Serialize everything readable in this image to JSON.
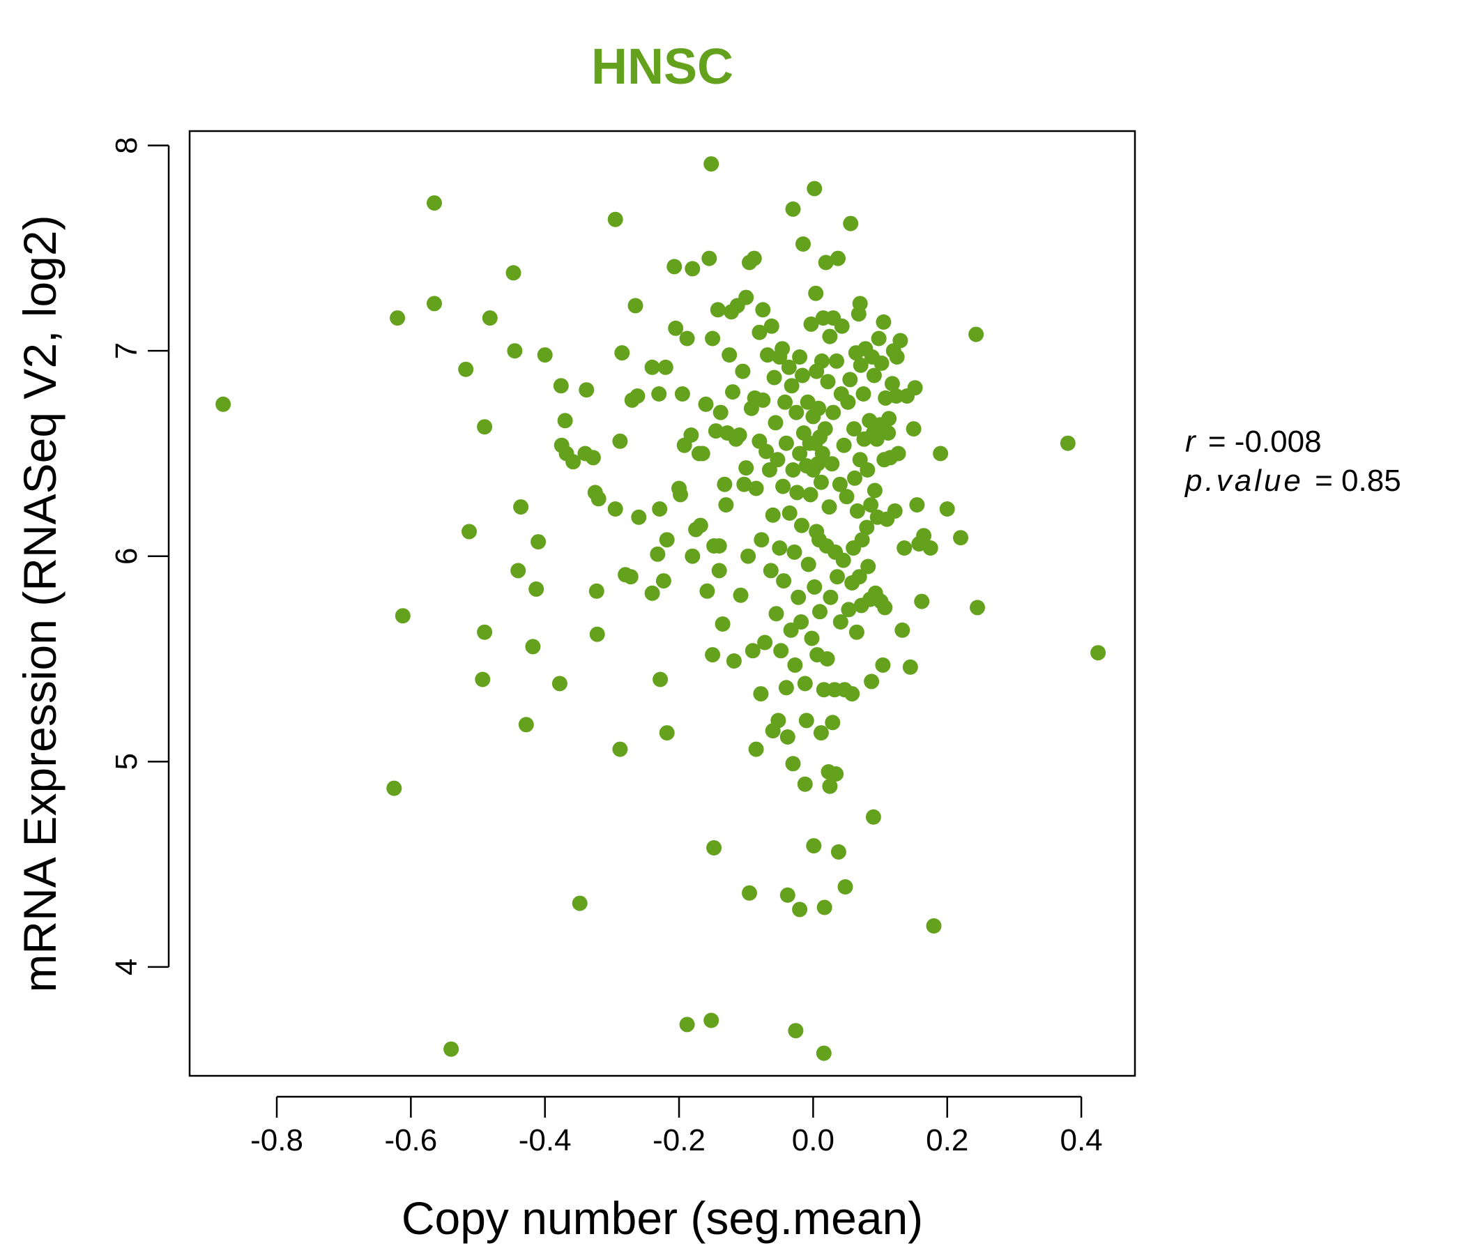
{
  "colors": {
    "accent": "#64A21E",
    "axis": "#000000",
    "background": "#ffffff"
  },
  "chart_data": {
    "type": "scatter",
    "title": "HNSC",
    "xlabel": "Copy number (seg.mean)",
    "ylabel": "mRNA Expression (RNASeq V2, log2)",
    "xlim": [
      -0.93,
      0.48
    ],
    "ylim": [
      3.47,
      8.07
    ],
    "xticks": [
      -0.8,
      -0.6,
      -0.4,
      -0.2,
      0.0,
      0.2,
      0.4
    ],
    "xtick_labels": [
      "-0.8",
      "-0.6",
      "-0.4",
      "-0.2",
      "0.0",
      "0.2",
      "0.4"
    ],
    "yticks": [
      4,
      5,
      6,
      7,
      8
    ],
    "ytick_labels": [
      "4",
      "5",
      "6",
      "7",
      "8"
    ],
    "grid": false,
    "legend": "none",
    "stats": {
      "r_label": "r",
      "r_value": "= -0.008",
      "p_label": "p.value",
      "p_value": "= 0.85"
    },
    "points": [
      [
        -0.88,
        6.74
      ],
      [
        -0.565,
        7.72
      ],
      [
        -0.565,
        7.23
      ],
      [
        -0.62,
        7.16
      ],
      [
        -0.612,
        5.71
      ],
      [
        -0.625,
        4.87
      ],
      [
        -0.54,
        3.6
      ],
      [
        -0.518,
        6.91
      ],
      [
        -0.513,
        6.12
      ],
      [
        -0.49,
        6.63
      ],
      [
        -0.49,
        5.63
      ],
      [
        -0.493,
        5.4
      ],
      [
        -0.482,
        7.16
      ],
      [
        -0.447,
        7.38
      ],
      [
        -0.445,
        7.0
      ],
      [
        -0.44,
        5.93
      ],
      [
        -0.436,
        6.24
      ],
      [
        -0.428,
        5.18
      ],
      [
        -0.418,
        5.56
      ],
      [
        -0.413,
        5.84
      ],
      [
        -0.41,
        6.07
      ],
      [
        -0.4,
        6.98
      ],
      [
        -0.376,
        6.83
      ],
      [
        -0.378,
        5.38
      ],
      [
        -0.37,
        6.66
      ],
      [
        -0.375,
        6.54
      ],
      [
        -0.368,
        6.5
      ],
      [
        -0.358,
        6.46
      ],
      [
        -0.348,
        4.31
      ],
      [
        -0.338,
        6.81
      ],
      [
        -0.34,
        6.5
      ],
      [
        -0.328,
        6.48
      ],
      [
        -0.325,
        6.31
      ],
      [
        -0.32,
        6.28
      ],
      [
        -0.323,
        5.83
      ],
      [
        -0.322,
        5.62
      ],
      [
        -0.295,
        7.64
      ],
      [
        -0.295,
        6.23
      ],
      [
        -0.288,
        6.56
      ],
      [
        -0.285,
        6.99
      ],
      [
        -0.288,
        5.06
      ],
      [
        -0.28,
        5.91
      ],
      [
        -0.272,
        5.9
      ],
      [
        -0.27,
        6.76
      ],
      [
        -0.265,
        7.22
      ],
      [
        -0.262,
        6.78
      ],
      [
        -0.26,
        6.19
      ],
      [
        -0.24,
        6.92
      ],
      [
        -0.24,
        5.82
      ],
      [
        -0.232,
        6.01
      ],
      [
        -0.23,
        6.79
      ],
      [
        -0.229,
        6.23
      ],
      [
        -0.228,
        5.4
      ],
      [
        -0.223,
        5.88
      ],
      [
        -0.22,
        6.92
      ],
      [
        -0.218,
        6.08
      ],
      [
        -0.218,
        5.14
      ],
      [
        -0.207,
        7.41
      ],
      [
        -0.205,
        7.11
      ],
      [
        -0.2,
        6.33
      ],
      [
        -0.198,
        6.3
      ],
      [
        -0.195,
        6.79
      ],
      [
        -0.192,
        6.54
      ],
      [
        -0.188,
        7.06
      ],
      [
        -0.188,
        3.72
      ],
      [
        -0.182,
        6.59
      ],
      [
        -0.18,
        6.0
      ],
      [
        -0.18,
        7.4
      ],
      [
        -0.175,
        6.13
      ],
      [
        -0.17,
        6.5
      ],
      [
        -0.168,
        6.15
      ],
      [
        -0.165,
        6.5
      ],
      [
        -0.16,
        6.74
      ],
      [
        -0.158,
        5.83
      ],
      [
        -0.155,
        7.45
      ],
      [
        -0.152,
        7.91
      ],
      [
        -0.152,
        3.74
      ],
      [
        -0.15,
        5.52
      ],
      [
        -0.15,
        7.06
      ],
      [
        -0.148,
        6.05
      ],
      [
        -0.148,
        4.58
      ],
      [
        -0.145,
        6.61
      ],
      [
        -0.142,
        7.2
      ],
      [
        -0.14,
        6.05
      ],
      [
        -0.14,
        5.93
      ],
      [
        -0.138,
        6.7
      ],
      [
        -0.135,
        5.67
      ],
      [
        -0.132,
        6.35
      ],
      [
        -0.13,
        6.25
      ],
      [
        -0.128,
        6.6
      ],
      [
        -0.125,
        6.98
      ],
      [
        -0.122,
        7.19
      ],
      [
        -0.12,
        6.8
      ],
      [
        -0.118,
        5.49
      ],
      [
        -0.115,
        6.57
      ],
      [
        -0.113,
        7.22
      ],
      [
        -0.11,
        6.59
      ],
      [
        -0.108,
        5.81
      ],
      [
        -0.105,
        6.9
      ],
      [
        -0.103,
        6.35
      ],
      [
        -0.1,
        7.26
      ],
      [
        -0.1,
        6.43
      ],
      [
        -0.097,
        6.0
      ],
      [
        -0.095,
        7.43
      ],
      [
        -0.095,
        4.36
      ],
      [
        -0.092,
        6.72
      ],
      [
        -0.09,
        5.54
      ],
      [
        -0.088,
        7.45
      ],
      [
        -0.087,
        6.77
      ],
      [
        -0.085,
        6.33
      ],
      [
        -0.085,
        5.06
      ],
      [
        -0.08,
        7.09
      ],
      [
        -0.08,
        6.56
      ],
      [
        -0.078,
        5.33
      ],
      [
        -0.077,
        6.08
      ],
      [
        -0.075,
        7.2
      ],
      [
        -0.075,
        6.76
      ],
      [
        -0.072,
        5.58
      ],
      [
        -0.07,
        6.51
      ],
      [
        -0.068,
        6.98
      ],
      [
        -0.065,
        6.42
      ],
      [
        -0.063,
        5.93
      ],
      [
        -0.062,
        7.12
      ],
      [
        -0.06,
        6.2
      ],
      [
        -0.06,
        5.15
      ],
      [
        -0.058,
        6.87
      ],
      [
        -0.056,
        6.65
      ],
      [
        -0.055,
        5.72
      ],
      [
        -0.053,
        6.47
      ],
      [
        -0.052,
        5.2
      ],
      [
        -0.05,
        6.97
      ],
      [
        -0.05,
        6.04
      ],
      [
        -0.048,
        5.54
      ],
      [
        -0.046,
        7.01
      ],
      [
        -0.045,
        6.34
      ],
      [
        -0.044,
        5.88
      ],
      [
        -0.042,
        6.75
      ],
      [
        -0.04,
        6.55
      ],
      [
        -0.04,
        5.36
      ],
      [
        -0.038,
        5.12
      ],
      [
        -0.038,
        4.35
      ],
      [
        -0.036,
        6.92
      ],
      [
        -0.035,
        6.21
      ],
      [
        -0.033,
        5.64
      ],
      [
        -0.032,
        6.83
      ],
      [
        -0.03,
        7.69
      ],
      [
        -0.03,
        6.42
      ],
      [
        -0.03,
        4.99
      ],
      [
        -0.028,
        6.02
      ],
      [
        -0.027,
        5.47
      ],
      [
        -0.026,
        3.69
      ],
      [
        -0.025,
        6.7
      ],
      [
        -0.024,
        6.31
      ],
      [
        -0.022,
        5.8
      ],
      [
        -0.02,
        6.97
      ],
      [
        -0.02,
        6.5
      ],
      [
        -0.02,
        4.28
      ],
      [
        -0.018,
        5.68
      ],
      [
        -0.017,
        6.15
      ],
      [
        -0.016,
        6.88
      ],
      [
        -0.015,
        7.52
      ],
      [
        -0.014,
        6.6
      ],
      [
        -0.012,
        5.38
      ],
      [
        -0.012,
        4.89
      ],
      [
        -0.01,
        6.44
      ],
      [
        -0.01,
        5.2
      ],
      [
        -0.008,
        6.75
      ],
      [
        -0.007,
        5.96
      ],
      [
        -0.005,
        6.55
      ],
      [
        -0.004,
        6.3
      ],
      [
        -0.003,
        7.13
      ],
      [
        -0.002,
        5.6
      ],
      [
        0.0,
        6.68
      ],
      [
        0.0,
        6.42
      ],
      [
        0.001,
        4.59
      ],
      [
        0.002,
        7.79
      ],
      [
        0.002,
        5.85
      ],
      [
        0.003,
        6.55
      ],
      [
        0.004,
        7.28
      ],
      [
        0.005,
        6.9
      ],
      [
        0.005,
        6.12
      ],
      [
        0.006,
        5.52
      ],
      [
        0.007,
        6.45
      ],
      [
        0.008,
        6.72
      ],
      [
        0.009,
        6.08
      ],
      [
        0.01,
        5.73
      ],
      [
        0.01,
        6.58
      ],
      [
        0.012,
        6.36
      ],
      [
        0.012,
        5.14
      ],
      [
        0.013,
        6.95
      ],
      [
        0.014,
        6.5
      ],
      [
        0.015,
        7.16
      ],
      [
        0.016,
        5.35
      ],
      [
        0.016,
        3.58
      ],
      [
        0.017,
        4.29
      ],
      [
        0.018,
        6.62
      ],
      [
        0.019,
        7.43
      ],
      [
        0.02,
        6.05
      ],
      [
        0.021,
        5.5
      ],
      [
        0.022,
        6.85
      ],
      [
        0.023,
        4.95
      ],
      [
        0.024,
        6.24
      ],
      [
        0.025,
        7.07
      ],
      [
        0.025,
        4.88
      ],
      [
        0.026,
        5.8
      ],
      [
        0.028,
        6.45
      ],
      [
        0.029,
        5.19
      ],
      [
        0.03,
        6.7
      ],
      [
        0.03,
        7.16
      ],
      [
        0.032,
        5.35
      ],
      [
        0.033,
        6.02
      ],
      [
        0.034,
        4.94
      ],
      [
        0.035,
        6.95
      ],
      [
        0.036,
        5.9
      ],
      [
        0.037,
        7.45
      ],
      [
        0.038,
        4.56
      ],
      [
        0.04,
        6.35
      ],
      [
        0.041,
        5.68
      ],
      [
        0.042,
        6.79
      ],
      [
        0.043,
        7.12
      ],
      [
        0.045,
        5.98
      ],
      [
        0.046,
        6.54
      ],
      [
        0.047,
        5.35
      ],
      [
        0.048,
        4.39
      ],
      [
        0.05,
        6.29
      ],
      [
        0.052,
        6.75
      ],
      [
        0.053,
        5.74
      ],
      [
        0.055,
        6.86
      ],
      [
        0.056,
        7.62
      ],
      [
        0.058,
        5.33
      ],
      [
        0.058,
        5.87
      ],
      [
        0.06,
        6.04
      ],
      [
        0.061,
        6.62
      ],
      [
        0.062,
        6.38
      ],
      [
        0.064,
        6.99
      ],
      [
        0.065,
        5.63
      ],
      [
        0.066,
        6.22
      ],
      [
        0.068,
        7.18
      ],
      [
        0.069,
        5.9
      ],
      [
        0.07,
        7.23
      ],
      [
        0.07,
        6.47
      ],
      [
        0.071,
        6.93
      ],
      [
        0.072,
        5.76
      ],
      [
        0.073,
        6.08
      ],
      [
        0.075,
        6.79
      ],
      [
        0.076,
        6.57
      ],
      [
        0.078,
        7.01
      ],
      [
        0.08,
        6.14
      ],
      [
        0.081,
        6.42
      ],
      [
        0.082,
        5.95
      ],
      [
        0.084,
        6.66
      ],
      [
        0.085,
        5.79
      ],
      [
        0.086,
        6.25
      ],
      [
        0.087,
        5.39
      ],
      [
        0.088,
        6.97
      ],
      [
        0.09,
        4.73
      ],
      [
        0.09,
        6.6
      ],
      [
        0.091,
        6.88
      ],
      [
        0.092,
        6.32
      ],
      [
        0.093,
        5.82
      ],
      [
        0.095,
        6.57
      ],
      [
        0.096,
        6.19
      ],
      [
        0.098,
        7.06
      ],
      [
        0.1,
        6.64
      ],
      [
        0.101,
        5.78
      ],
      [
        0.102,
        6.94
      ],
      [
        0.104,
        5.47
      ],
      [
        0.105,
        7.14
      ],
      [
        0.106,
        6.47
      ],
      [
        0.107,
        5.75
      ],
      [
        0.108,
        6.77
      ],
      [
        0.11,
        6.18
      ],
      [
        0.112,
        6.6
      ],
      [
        0.113,
        6.67
      ],
      [
        0.115,
        6.48
      ],
      [
        0.118,
        6.84
      ],
      [
        0.12,
        7.0
      ],
      [
        0.122,
        6.22
      ],
      [
        0.124,
        6.78
      ],
      [
        0.125,
        6.97
      ],
      [
        0.127,
        6.5
      ],
      [
        0.13,
        7.05
      ],
      [
        0.133,
        5.64
      ],
      [
        0.136,
        6.04
      ],
      [
        0.14,
        6.78
      ],
      [
        0.145,
        5.46
      ],
      [
        0.15,
        6.62
      ],
      [
        0.152,
        6.82
      ],
      [
        0.155,
        6.25
      ],
      [
        0.158,
        6.06
      ],
      [
        0.162,
        5.78
      ],
      [
        0.165,
        6.1
      ],
      [
        0.175,
        6.04
      ],
      [
        0.18,
        4.2
      ],
      [
        0.19,
        6.5
      ],
      [
        0.2,
        6.23
      ],
      [
        0.22,
        6.09
      ],
      [
        0.243,
        7.08
      ],
      [
        0.245,
        5.75
      ],
      [
        0.38,
        6.55
      ],
      [
        0.425,
        5.53
      ]
    ]
  }
}
